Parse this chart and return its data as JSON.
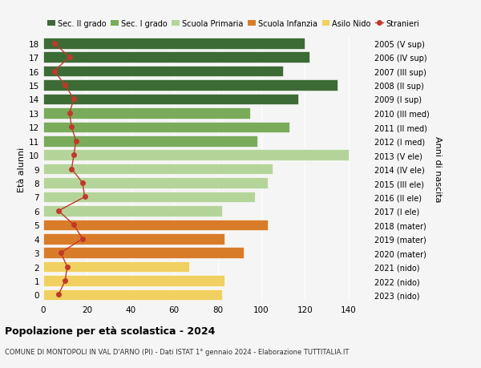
{
  "ages": [
    18,
    17,
    16,
    15,
    14,
    13,
    12,
    11,
    10,
    9,
    8,
    7,
    6,
    5,
    4,
    3,
    2,
    1,
    0
  ],
  "bar_values": [
    120,
    122,
    110,
    135,
    117,
    95,
    113,
    98,
    140,
    105,
    103,
    97,
    82,
    103,
    83,
    92,
    67,
    83,
    82
  ],
  "stranieri_values": [
    5,
    12,
    5,
    10,
    14,
    12,
    13,
    15,
    14,
    13,
    18,
    19,
    7,
    14,
    18,
    8,
    11,
    10,
    7
  ],
  "right_labels": [
    "2005 (V sup)",
    "2006 (IV sup)",
    "2007 (III sup)",
    "2008 (II sup)",
    "2009 (I sup)",
    "2010 (III med)",
    "2011 (II med)",
    "2012 (I med)",
    "2013 (V ele)",
    "2014 (IV ele)",
    "2015 (III ele)",
    "2016 (II ele)",
    "2017 (I ele)",
    "2018 (mater)",
    "2019 (mater)",
    "2020 (mater)",
    "2021 (nido)",
    "2022 (nido)",
    "2023 (nido)"
  ],
  "bar_colors": [
    "#3d6b35",
    "#3d6b35",
    "#3d6b35",
    "#3d6b35",
    "#3d6b35",
    "#7aab5a",
    "#7aab5a",
    "#7aab5a",
    "#b5d49a",
    "#b5d49a",
    "#b5d49a",
    "#b5d49a",
    "#b5d49a",
    "#d97c2a",
    "#d97c2a",
    "#d97c2a",
    "#f0d060",
    "#f0d060",
    "#f0d060"
  ],
  "legend_labels": [
    "Sec. II grado",
    "Sec. I grado",
    "Scuola Primaria",
    "Scuola Infanzia",
    "Asilo Nido",
    "Stranieri"
  ],
  "legend_colors": [
    "#3d6b35",
    "#7aab5a",
    "#b5d49a",
    "#d97c2a",
    "#f0d060",
    "#c0392b"
  ],
  "stranieri_color": "#c0392b",
  "title": "Popolazione per età scolastica - 2024",
  "subtitle": "COMUNE DI MONTOPOLI IN VAL D'ARNO (PI) - Dati ISTAT 1° gennaio 2024 - Elaborazione TUTTITALIA.IT",
  "ylabel": "Età alunni",
  "right_ylabel": "Anni di nascita",
  "xlim": [
    0,
    150
  ],
  "xticks": [
    0,
    20,
    40,
    60,
    80,
    100,
    120,
    140
  ],
  "background_color": "#f5f5f5",
  "bar_height": 0.78
}
